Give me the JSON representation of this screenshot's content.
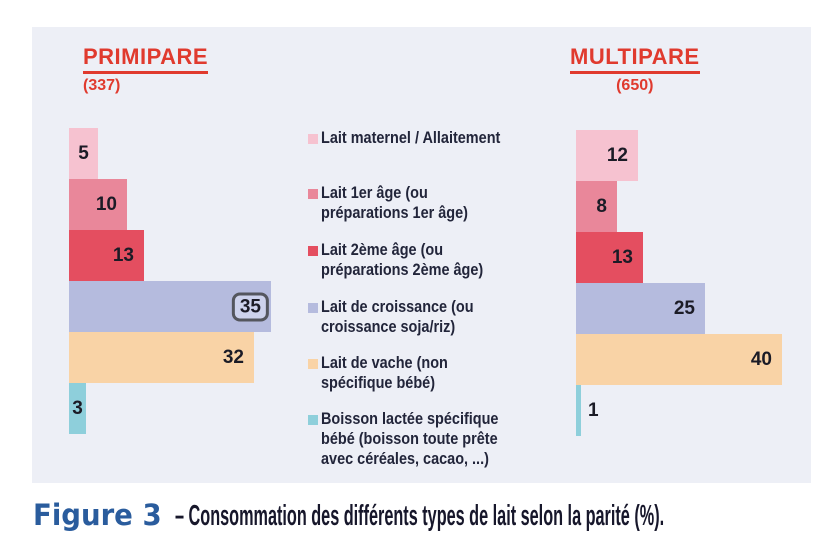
{
  "figure": {
    "left": {
      "title": "PRIMIPARE",
      "subtitle": "(337)"
    },
    "right": {
      "title": "MULTIPARE",
      "subtitle": "(650)"
    }
  },
  "legend": {
    "items": [
      {
        "label": "Lait maternel / Allaitement",
        "color": "#f6c2d0"
      },
      {
        "label": "Lait 1er âge (ou\npréparations 1er âge)",
        "color": "#e9879a"
      },
      {
        "label": "Lait 2ème âge (ou\npréparations 2ème âge)",
        "color": "#e44e60"
      },
      {
        "label": "Lait de croissance (ou\ncroissance soja/riz)",
        "color": "#b5bbde"
      },
      {
        "label": "Lait de vache (non\nspécifique bébé)",
        "color": "#f9d3a6"
      },
      {
        "label": "Boisson lactée spécifique\nbébé (boisson toute prête\navec céréales, cacao, ...)",
        "color": "#8ecfdb"
      }
    ]
  },
  "caption": {
    "figure_label": "Figure 3",
    "text": "– Consommation des différents types de lait selon la parité (%)."
  },
  "chart_data": {
    "type": "bar",
    "orientation": "horizontal",
    "unit": "%",
    "title": "Figure 3 – Consommation des différents types de lait selon la parité (%).",
    "categories": [
      "Lait maternel / Allaitement",
      "Lait 1er âge (ou préparations 1er âge)",
      "Lait 2ème âge (ou préparations 2ème âge)",
      "Lait de croissance (ou croissance soja/riz)",
      "Lait de vache (non spécifique bébé)",
      "Boisson lactée spécifique bébé (boisson toute prête avec céréales, cacao, ...)"
    ],
    "series": [
      {
        "name": "PRIMIPARE",
        "count": 337,
        "values": [
          5,
          10,
          13,
          35,
          32,
          3
        ]
      },
      {
        "name": "MULTIPARE",
        "count": 650,
        "values": [
          12,
          8,
          13,
          25,
          40,
          1
        ]
      }
    ],
    "colors": [
      "#f6c2d0",
      "#e9879a",
      "#e44e60",
      "#b5bbde",
      "#f9d3a6",
      "#8ecfdb"
    ],
    "highlighted": {
      "series": "PRIMIPARE",
      "category": "Lait de croissance (ou croissance soja/riz)",
      "value": 35
    },
    "legend_position": "center-between-charts",
    "grid": false,
    "axes_visible": false
  },
  "colors": {
    "panel_bg": "#edeff6",
    "series_title": "#e03a2e",
    "caption_accent": "#2a5c9d",
    "caption_text": "#17172b",
    "value_text": "#1b1b26",
    "highlight_box_border": "#54565e",
    "highlight_box_bg": "#cdd2ec"
  }
}
